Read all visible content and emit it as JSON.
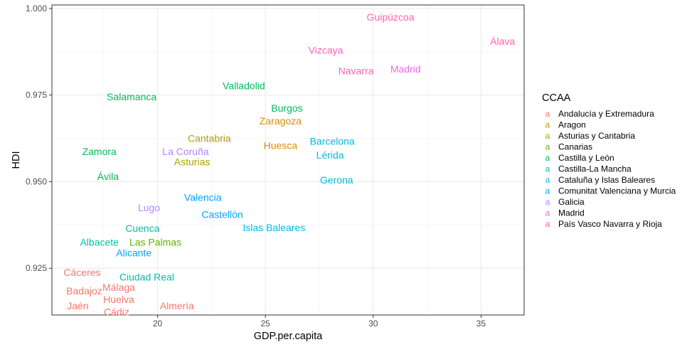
{
  "chart_data": {
    "type": "scatter",
    "title": "",
    "xlabel": "GDP.per.capita",
    "ylabel": "HDI",
    "xlim": [
      15.1,
      37.0
    ],
    "ylim": [
      0.9115,
      1.001
    ],
    "x_ticks": [
      20,
      25,
      30,
      35
    ],
    "x_tick_labels": [
      "20",
      "25",
      "30",
      "35"
    ],
    "y_ticks": [
      0.925,
      0.95,
      0.975,
      1.0
    ],
    "y_tick_labels": [
      "0.925",
      "0.950",
      "0.975",
      "1.000"
    ],
    "grid": true,
    "legend": {
      "title": "CCAA",
      "placement": "right",
      "key_glyph": "a"
    },
    "series": [
      {
        "name": "Andalucía y Extremadura",
        "color": "#F8766D",
        "points": [
          {
            "label": "Cáceres",
            "x": 16.5,
            "y": 0.9238
          },
          {
            "label": "Badajoz",
            "x": 16.6,
            "y": 0.9185
          },
          {
            "label": "Málaga",
            "x": 18.2,
            "y": 0.9195
          },
          {
            "label": "Huelva",
            "x": 18.2,
            "y": 0.916
          },
          {
            "label": "Jaén",
            "x": 16.3,
            "y": 0.9142
          },
          {
            "label": "Almería",
            "x": 20.9,
            "y": 0.9142
          },
          {
            "label": "Cádiz",
            "x": 18.1,
            "y": 0.9124
          }
        ]
      },
      {
        "name": "Aragon",
        "color": "#DB8E00",
        "points": [
          {
            "label": "Zaragoza",
            "x": 25.7,
            "y": 0.9675
          },
          {
            "label": "Huesca",
            "x": 25.7,
            "y": 0.9605
          }
        ]
      },
      {
        "name": "Asturias y Cantabria",
        "color": "#AEA200",
        "points": [
          {
            "label": "Cantabria",
            "x": 22.4,
            "y": 0.9625
          },
          {
            "label": "Asturias",
            "x": 21.6,
            "y": 0.9557
          }
        ]
      },
      {
        "name": "Canarias",
        "color": "#64B200",
        "points": [
          {
            "label": "Las Palmas",
            "x": 19.9,
            "y": 0.9325
          }
        ]
      },
      {
        "name": "Castilla y León",
        "color": "#00BD5C",
        "points": [
          {
            "label": "Valladolid",
            "x": 24.0,
            "y": 0.9777
          },
          {
            "label": "Salamanca",
            "x": 18.8,
            "y": 0.9745
          },
          {
            "label": "Burgos",
            "x": 26.0,
            "y": 0.9712
          },
          {
            "label": "Zamora",
            "x": 17.3,
            "y": 0.9587
          },
          {
            "label": "Ávila",
            "x": 17.7,
            "y": 0.9515
          }
        ]
      },
      {
        "name": "Castilla-La Mancha",
        "color": "#00C1A7",
        "points": [
          {
            "label": "Cuenca",
            "x": 19.3,
            "y": 0.9365
          },
          {
            "label": "Albacete",
            "x": 17.3,
            "y": 0.9325
          },
          {
            "label": "Ciudad Real",
            "x": 19.5,
            "y": 0.9225
          }
        ]
      },
      {
        "name": "Cataluña y Islas Baleares",
        "color": "#00BADE",
        "points": [
          {
            "label": "Barcelona",
            "x": 28.1,
            "y": 0.9617
          },
          {
            "label": "Lérida",
            "x": 28.0,
            "y": 0.9577
          },
          {
            "label": "Gerona",
            "x": 28.3,
            "y": 0.9505
          },
          {
            "label": "Islas Baleares",
            "x": 25.4,
            "y": 0.9367
          }
        ]
      },
      {
        "name": "Comunitat Valenciana y Murcia",
        "color": "#00A6FF",
        "points": [
          {
            "label": "Valencia",
            "x": 22.1,
            "y": 0.9455
          },
          {
            "label": "Castellón",
            "x": 23.0,
            "y": 0.9405
          },
          {
            "label": "Alicante",
            "x": 18.9,
            "y": 0.9295
          }
        ]
      },
      {
        "name": "Galicia",
        "color": "#B385FF",
        "points": [
          {
            "label": "La Coruña",
            "x": 21.3,
            "y": 0.9587
          },
          {
            "label": "Lugo",
            "x": 19.6,
            "y": 0.9425
          }
        ]
      },
      {
        "name": "Madrid",
        "color": "#EF67EB",
        "points": [
          {
            "label": "Madrid",
            "x": 31.5,
            "y": 0.9825
          }
        ]
      },
      {
        "name": "País Vasco Navarra y Rioja",
        "color": "#FF63B6",
        "points": [
          {
            "label": "Guipúzcoa",
            "x": 30.8,
            "y": 0.9975
          },
          {
            "label": "Álava",
            "x": 36.0,
            "y": 0.9905
          },
          {
            "label": "Vizcaya",
            "x": 27.8,
            "y": 0.988
          },
          {
            "label": "Navarra",
            "x": 29.2,
            "y": 0.982
          }
        ]
      }
    ]
  }
}
